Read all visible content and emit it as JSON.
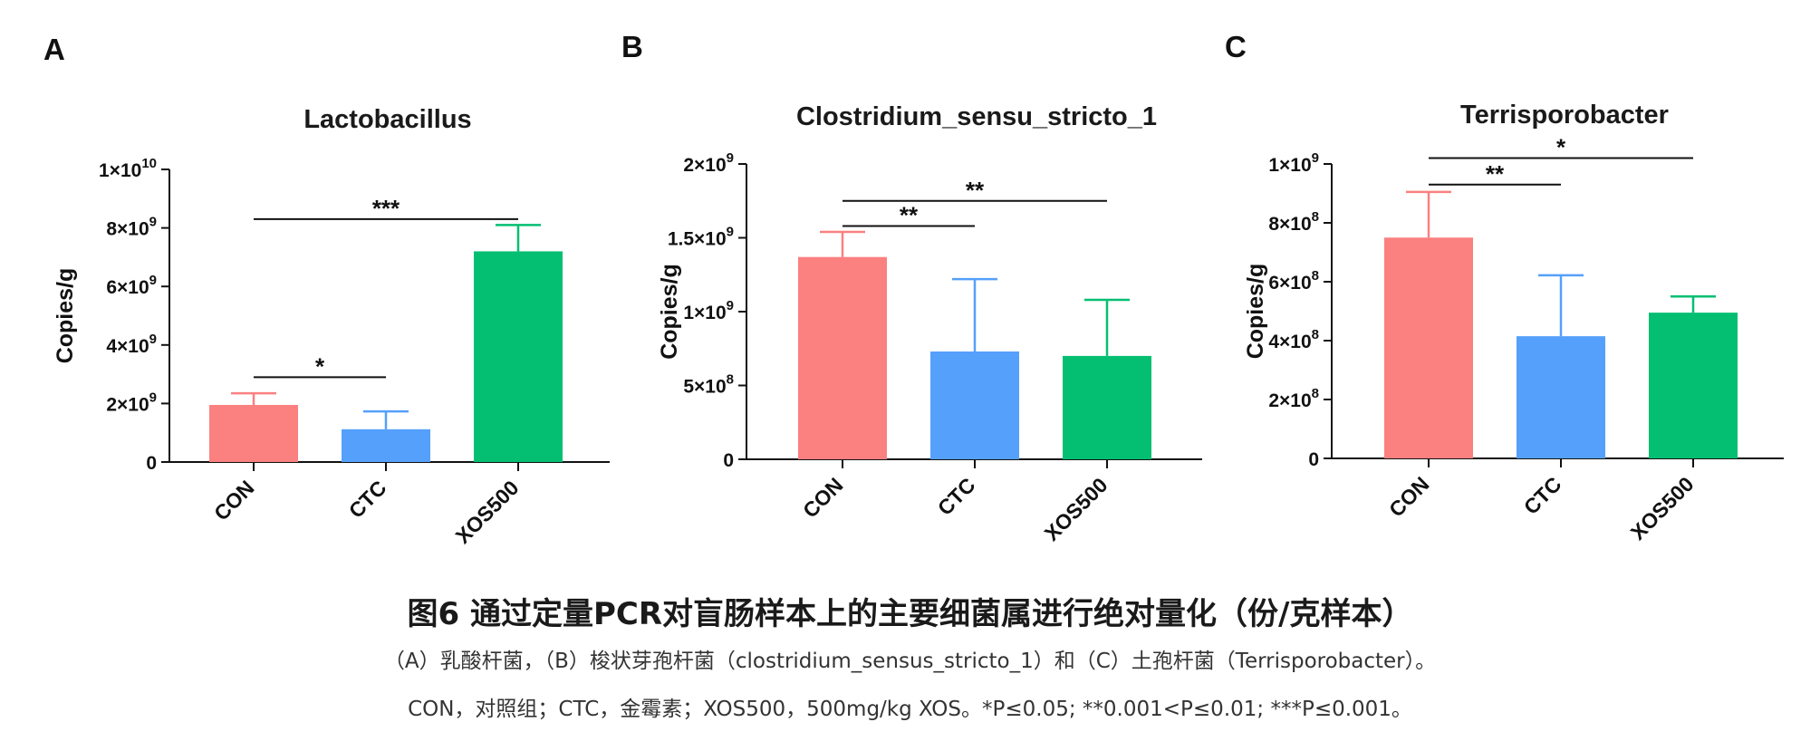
{
  "chart_data": [
    {
      "panel": "A",
      "type": "bar",
      "title": "Lactobacillus",
      "ylabel": "Copies/g",
      "categories": [
        "CON",
        "CTC",
        "XOS500"
      ],
      "values": [
        1950000000.0,
        1120000000.0,
        7200000000.0
      ],
      "error_upper": [
        2350000000.0,
        1730000000.0,
        8100000000.0
      ],
      "colors": [
        "#fb8080",
        "#55a0fb",
        "#04bf72"
      ],
      "ylim": [
        0,
        10000000000.0
      ],
      "yticks": [
        {
          "value": 0,
          "mant": "0",
          "exp": ""
        },
        {
          "value": 2000000000.0,
          "mant": "2×10",
          "exp": "9"
        },
        {
          "value": 4000000000.0,
          "mant": "4×10",
          "exp": "9"
        },
        {
          "value": 6000000000.0,
          "mant": "6×10",
          "exp": "9"
        },
        {
          "value": 8000000000.0,
          "mant": "8×10",
          "exp": "9"
        },
        {
          "value": 10000000000.0,
          "mant": "1×10",
          "exp": "10"
        }
      ],
      "significance": [
        {
          "from": 0,
          "to": 2,
          "y": 8300000000.0,
          "label": "***"
        },
        {
          "from": 0,
          "to": 1,
          "y": 2900000000.0,
          "label": "*"
        }
      ]
    },
    {
      "panel": "B",
      "type": "bar",
      "title": "Clostridium_sensu_stricto_1",
      "ylabel": "Copies/g",
      "categories": [
        "CON",
        "CTC",
        "XOS500"
      ],
      "values": [
        1370000000.0,
        730000000.0,
        700000000.0
      ],
      "error_upper": [
        1540000000.0,
        1220000000.0,
        1080000000.0
      ],
      "colors": [
        "#fb8080",
        "#55a0fb",
        "#04bf72"
      ],
      "ylim": [
        0,
        2000000000.0
      ],
      "yticks": [
        {
          "value": 0,
          "mant": "0",
          "exp": ""
        },
        {
          "value": 500000000.0,
          "mant": "5×10",
          "exp": "8"
        },
        {
          "value": 1000000000.0,
          "mant": "1×10",
          "exp": "9"
        },
        {
          "value": 1500000000.0,
          "mant": "1.5×10",
          "exp": "9"
        },
        {
          "value": 2000000000.0,
          "mant": "2×10",
          "exp": "9"
        }
      ],
      "significance": [
        {
          "from": 0,
          "to": 2,
          "y": 1750000000.0,
          "label": "**"
        },
        {
          "from": 0,
          "to": 1,
          "y": 1580000000.0,
          "label": "**"
        }
      ]
    },
    {
      "panel": "C",
      "type": "bar",
      "title": "Terrisporobacter",
      "ylabel": "Copies/g",
      "categories": [
        "CON",
        "CTC",
        "XOS500"
      ],
      "values": [
        750000000.0,
        415000000.0,
        495000000.0
      ],
      "error_upper": [
        905000000.0,
        622000000.0,
        550000000.0
      ],
      "colors": [
        "#fb8080",
        "#55a0fb",
        "#04bf72"
      ],
      "ylim": [
        0,
        1000000000.0
      ],
      "yticks": [
        {
          "value": 0,
          "mant": "0",
          "exp": ""
        },
        {
          "value": 200000000.0,
          "mant": "2×10",
          "exp": "8"
        },
        {
          "value": 400000000.0,
          "mant": "4×10",
          "exp": "8"
        },
        {
          "value": 600000000.0,
          "mant": "6×10",
          "exp": "8"
        },
        {
          "value": 800000000.0,
          "mant": "8×10",
          "exp": "8"
        },
        {
          "value": 1000000000.0,
          "mant": "1×10",
          "exp": "9"
        }
      ],
      "significance": [
        {
          "from": 0,
          "to": 2,
          "y": 1020000000.0,
          "label": "*"
        },
        {
          "from": 0,
          "to": 1,
          "y": 930000000.0,
          "label": "**"
        }
      ]
    }
  ],
  "caption": {
    "title": "图6 通过定量PCR对盲肠样本上的主要细菌属进行绝对量化（份/克样本）",
    "line1": "（A）乳酸杆菌，（B）梭状芽孢杆菌（clostridium_sensus_stricto_1）和（C）土孢杆菌（Terrisporobacter）。",
    "line2": "CON，对照组；CTC，金霉素；XOS500，500mg/kg XOS。*P≤0.05; **0.001<P≤0.01; ***P≤0.001。"
  }
}
